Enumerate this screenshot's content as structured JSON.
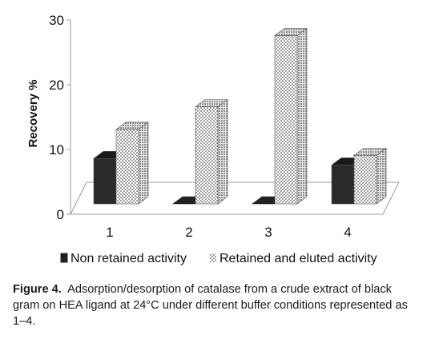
{
  "chart_data": {
    "type": "bar",
    "categories": [
      "1",
      "2",
      "3",
      "4"
    ],
    "series": [
      {
        "name": "Non retained activity",
        "values": [
          7,
          0,
          0,
          6
        ],
        "color": "#222222",
        "pattern": "solid"
      },
      {
        "name": "Retained and eluted activity",
        "values": [
          11.5,
          15,
          26,
          7.5
        ],
        "color": "#ffffff",
        "pattern": "dotted"
      }
    ],
    "ylabel": "Recovery  %",
    "ylim": [
      0,
      30
    ],
    "yticks": [
      "0",
      "10",
      "20",
      "30"
    ],
    "grid": false,
    "legend_position": "bottom",
    "style": "3d"
  },
  "caption": {
    "label": "Figure 4.",
    "text": "Adsorption/desorption of catalase from a crude extract of black gram on HEA ligand at 24°C under different buffer conditions represented as 1–4."
  }
}
